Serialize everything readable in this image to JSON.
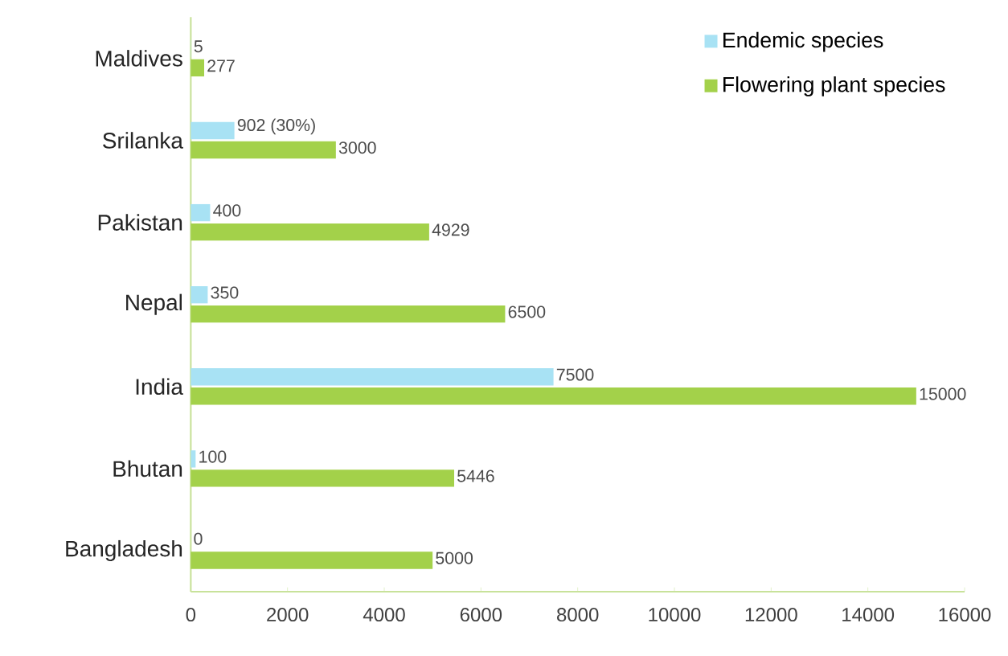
{
  "chart_data": {
    "type": "bar",
    "orientation": "horizontal",
    "categories": [
      "Maldives",
      "Srilanka",
      "Pakistan",
      "Nepal",
      "India",
      "Bhutan",
      "Bangladesh"
    ],
    "series": [
      {
        "name": "Endemic species",
        "color": "#a8e2f4",
        "values": [
          5,
          902,
          400,
          350,
          7500,
          100,
          0
        ],
        "value_labels": [
          "5",
          "902 (30%)",
          "400",
          "350",
          "7500",
          "100",
          "0"
        ]
      },
      {
        "name": "Flowering plant species",
        "color": "#a3d14a",
        "values": [
          277,
          3000,
          4929,
          6500,
          15000,
          5446,
          5000
        ],
        "value_labels": [
          "277",
          "3000",
          "4929",
          "6500",
          "15000",
          "5446",
          "5000"
        ]
      }
    ],
    "xlim": [
      0,
      16000
    ],
    "xticks": [
      0,
      2000,
      4000,
      6000,
      8000,
      10000,
      12000,
      14000,
      16000
    ],
    "legend": "top right"
  }
}
